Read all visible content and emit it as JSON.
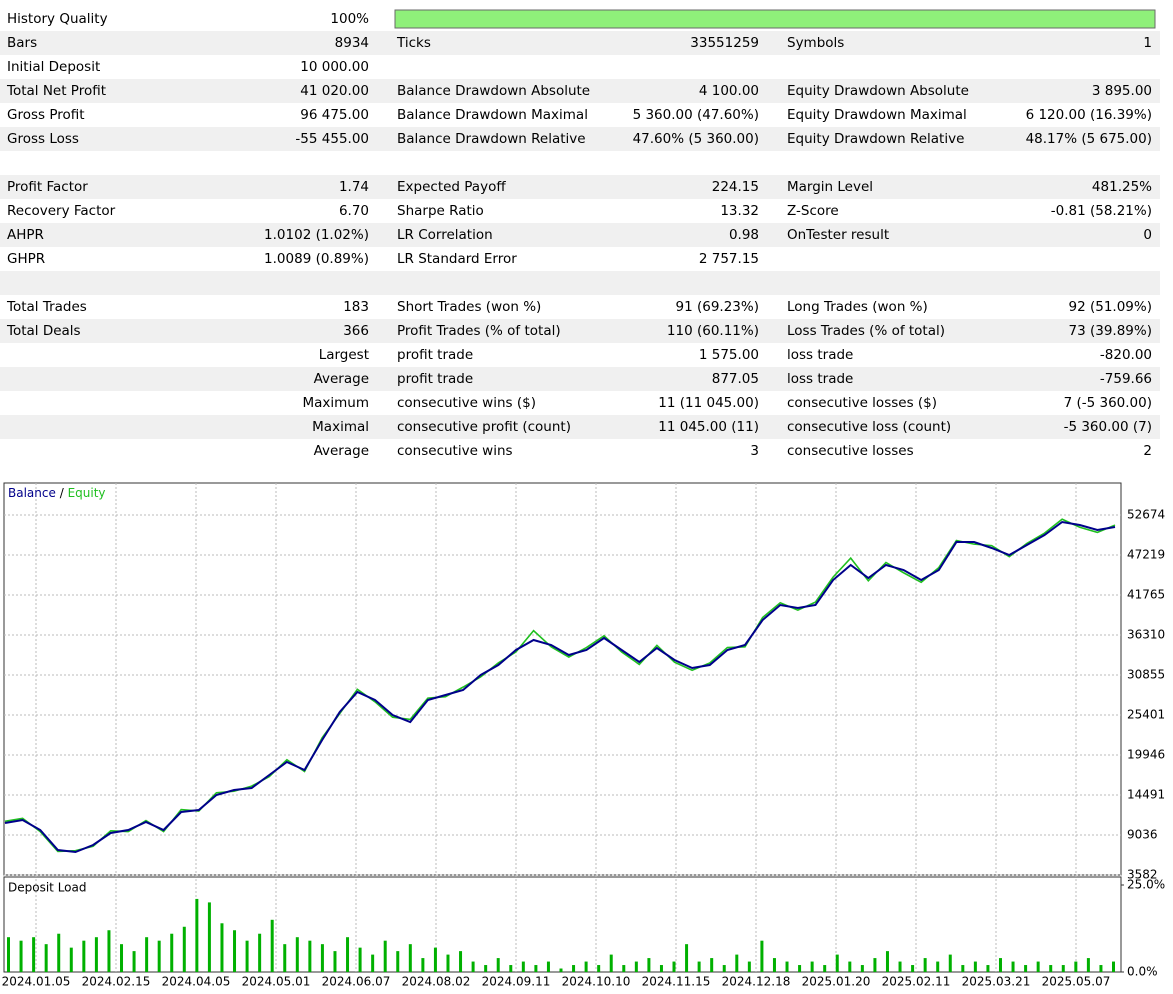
{
  "report": {
    "rows": [
      [
        "History Quality",
        "100%"
      ],
      [
        "Bars",
        "8934",
        "Ticks",
        "33551259",
        "Symbols",
        "1"
      ],
      [
        "Initial Deposit",
        "10 000.00"
      ],
      [
        "Total Net Profit",
        "41 020.00",
        "Balance Drawdown Absolute",
        "4 100.00",
        "Equity Drawdown Absolute",
        "3 895.00"
      ],
      [
        "Gross Profit",
        "96 475.00",
        "Balance Drawdown Maximal",
        "5 360.00 (47.60%)",
        "Equity Drawdown Maximal",
        "6 120.00 (16.39%)"
      ],
      [
        "Gross Loss",
        "-55 455.00",
        "Balance Drawdown Relative",
        "47.60% (5 360.00)",
        "Equity Drawdown Relative",
        "48.17% (5 675.00)"
      ],
      [],
      [
        "Profit Factor",
        "1.74",
        "Expected Payoff",
        "224.15",
        "Margin Level",
        "481.25%"
      ],
      [
        "Recovery Factor",
        "6.70",
        "Sharpe Ratio",
        "13.32",
        "Z-Score",
        "-0.81 (58.21%)"
      ],
      [
        "AHPR",
        "1.0102 (1.02%)",
        "LR Correlation",
        "0.98",
        "OnTester result",
        "0"
      ],
      [
        "GHPR",
        "1.0089 (0.89%)",
        "LR Standard Error",
        "2 757.15"
      ],
      [],
      [
        "Total Trades",
        "183",
        "Short Trades (won %)",
        "91 (69.23%)",
        "Long Trades (won %)",
        "92 (51.09%)"
      ],
      [
        "Total Deals",
        "366",
        "Profit Trades (% of total)",
        "110 (60.11%)",
        "Loss Trades (% of total)",
        "73 (39.89%)"
      ],
      [
        null,
        "Largest",
        "profit trade",
        "1 575.00",
        "loss trade",
        "-820.00"
      ],
      [
        null,
        "Average",
        "profit trade",
        "877.05",
        "loss trade",
        "-759.66"
      ],
      [
        null,
        "Maximum",
        "consecutive wins ($)",
        "11 (11 045.00)",
        "consecutive losses ($)",
        "7 (-5 360.00)"
      ],
      [
        null,
        "Maximal",
        "consecutive profit (count)",
        "11 045.00 (11)",
        "consecutive loss (count)",
        "-5 360.00 (7)"
      ],
      [
        null,
        "Average",
        "consecutive wins",
        "3",
        "consecutive losses",
        "2"
      ]
    ]
  },
  "chart_data": [
    {
      "type": "line",
      "legend_separator": "/",
      "series": [
        {
          "name": "Balance",
          "color": "#00008b",
          "values": [
            10673,
            11082,
            9718,
            6991,
            6718,
            7673,
            9309,
            9718,
            10809,
            9718,
            12173,
            12446,
            14491,
            15173,
            15446,
            17218,
            18991,
            17900,
            21991,
            25810,
            28537,
            27446,
            25401,
            24446,
            27446,
            28128,
            28810,
            30855,
            32219,
            34264,
            35628,
            34946,
            33582,
            34264,
            35901,
            34264,
            32628,
            34537,
            32901,
            31810,
            32219,
            34264,
            34946,
            38355,
            40400,
            39991,
            40400,
            43810,
            45855,
            44083,
            45855,
            45173,
            43810,
            45173,
            48992,
            48992,
            48174,
            47219,
            48583,
            49947,
            51720,
            51310,
            50629,
            51038
          ]
        },
        {
          "name": "Equity",
          "color": "#1fbf1f",
          "values": [
            10900,
            11300,
            9500,
            6800,
            6900,
            7500,
            9600,
            9500,
            11000,
            9500,
            12500,
            12300,
            14800,
            15000,
            15700,
            17000,
            19300,
            17700,
            22300,
            25600,
            28900,
            27200,
            25100,
            24800,
            27700,
            27900,
            29200,
            30600,
            32500,
            34000,
            36900,
            34700,
            33300,
            34600,
            36200,
            34000,
            32300,
            34900,
            32600,
            31500,
            32500,
            34600,
            34700,
            38700,
            40700,
            39700,
            40800,
            44200,
            46800,
            43700,
            46200,
            44800,
            43500,
            45500,
            49200,
            48700,
            48500,
            47000,
            48800,
            50200,
            52100,
            51000,
            50300,
            51300
          ]
        }
      ],
      "ylim": [
        3582,
        57038
      ],
      "yticks": [
        3582,
        9036,
        14491,
        19946,
        25401,
        30855,
        36310,
        41765,
        47219,
        52674
      ],
      "x_labels": [
        "2024.01.05",
        "2024.02.15",
        "2024.04.05",
        "2024.05.01",
        "2024.06.07",
        "2024.08.02",
        "2024.09.11",
        "2024.10.10",
        "2024.11.15",
        "2024.12.18",
        "2025.01.20",
        "2025.02.11",
        "2025.03.21",
        "2025.05.07"
      ],
      "grid": true
    },
    {
      "type": "bar",
      "title": "Deposit Load",
      "color": "#00b000",
      "values": [
        10,
        9,
        10,
        8,
        11,
        7,
        9,
        10,
        12,
        8,
        6,
        10,
        9,
        11,
        13,
        21,
        20,
        14,
        12,
        9,
        11,
        15,
        8,
        10,
        9,
        8,
        6,
        10,
        7,
        5,
        9,
        6,
        8,
        4,
        7,
        5,
        6,
        3,
        2,
        4,
        2,
        3,
        2,
        3,
        1,
        2,
        3,
        2,
        5,
        2,
        3,
        4,
        2,
        3,
        8,
        3,
        4,
        2,
        5,
        3,
        9,
        4,
        3,
        2,
        3,
        2,
        5,
        3,
        2,
        4,
        6,
        3,
        2,
        4,
        3,
        5,
        2,
        3,
        2,
        4,
        3,
        2,
        3,
        2,
        2,
        3,
        4,
        2,
        3
      ],
      "ylim": [
        0,
        25
      ],
      "yticks": [
        {
          "value": 0,
          "label": "0.0%"
        },
        {
          "value": 25,
          "label": "25.0%"
        }
      ]
    }
  ]
}
